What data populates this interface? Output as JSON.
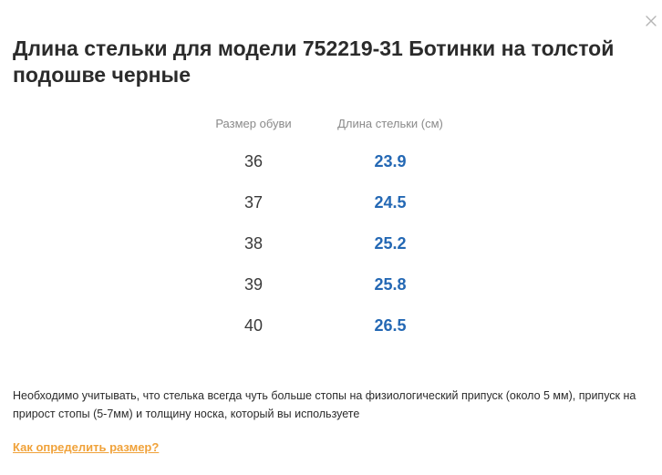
{
  "modal": {
    "title": "Длина стельки для модели 752219-31 Ботинки на толстой подошве черные",
    "close_icon": "close-icon"
  },
  "table": {
    "headers": {
      "size": "Размер обуви",
      "length": "Длина стельки (см)"
    },
    "rows": [
      {
        "size": "36",
        "length": "23.9"
      },
      {
        "size": "37",
        "length": "24.5"
      },
      {
        "size": "38",
        "length": "25.2"
      },
      {
        "size": "39",
        "length": "25.8"
      },
      {
        "size": "40",
        "length": "26.5"
      }
    ]
  },
  "note": "Необходимо учитывать, что стелька всегда чуть больше стопы на физиологический припуск (около 5 мм), припуск на прирост стопы (5-7мм) и толщину носка, который вы используете",
  "help_link": "Как определить размер?",
  "colors": {
    "accent_blue": "#2468b4",
    "link_orange": "#f0a23a",
    "text": "#2b2b2b",
    "muted": "#8a8a8a"
  }
}
